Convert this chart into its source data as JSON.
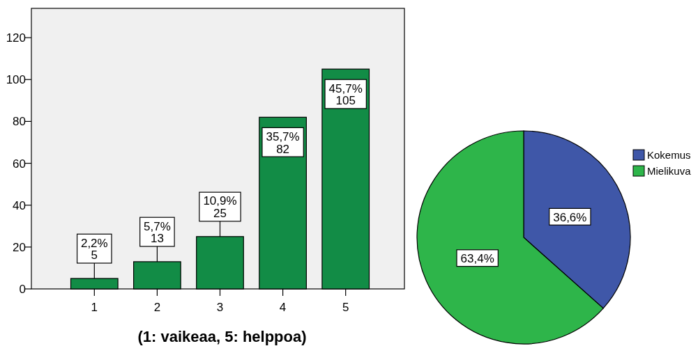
{
  "chart_data": [
    {
      "type": "bar",
      "xlabel": "(1: vaikeaa, 5: helppoa)",
      "categories": [
        "1",
        "2",
        "3",
        "4",
        "5"
      ],
      "values": [
        5,
        13,
        25,
        82,
        105
      ],
      "color": "#128c46",
      "value_labels": [
        "2,2%\n5",
        "5,7%\n13",
        "10,9%\n25",
        "35,7%\n82",
        "45,7%\n105"
      ],
      "ylim": [
        0,
        134
      ],
      "yticks": [
        0,
        20,
        40,
        60,
        80,
        100,
        120
      ],
      "grid": false
    },
    {
      "type": "pie",
      "categories": [
        "Kokemus",
        "Mielikuva"
      ],
      "values": [
        36.6,
        63.4
      ],
      "colors": [
        "#3f57a8",
        "#2eb54a"
      ],
      "value_labels": [
        "36,6%",
        "63,4%"
      ],
      "legend": "right"
    }
  ]
}
